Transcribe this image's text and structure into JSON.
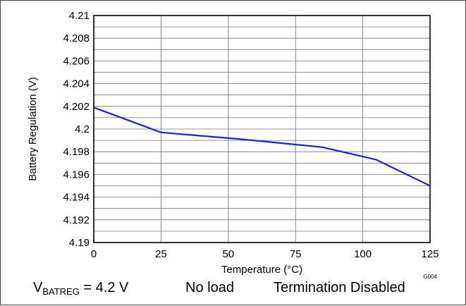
{
  "chart_data": {
    "type": "line",
    "title": "",
    "xlabel": "Temperature (°C)",
    "ylabel": "Battery Regulation (V)",
    "xlim": [
      0,
      125
    ],
    "ylim": [
      4.19,
      4.21
    ],
    "x_ticks": [
      "0",
      "25",
      "50",
      "75",
      "100",
      "125"
    ],
    "y_ticks": [
      "4.19",
      "4.192",
      "4.194",
      "4.196",
      "4.198",
      "4.2",
      "4.202",
      "4.204",
      "4.206",
      "4.208",
      "4.21"
    ],
    "grid": true,
    "series": [
      {
        "color": "#1f1fd6",
        "x": [
          0,
          25,
          55,
          85,
          105,
          125
        ],
        "y": [
          4.2019,
          4.1997,
          4.1991,
          4.1984,
          4.1973,
          4.195
        ]
      }
    ],
    "figure_id": "G004"
  },
  "conditions": {
    "vbat_main": "V",
    "vbat_sub": "BATREG",
    "vbat_value": " = 4.2 V",
    "load": "No load",
    "termination": "Termination Disabled"
  }
}
